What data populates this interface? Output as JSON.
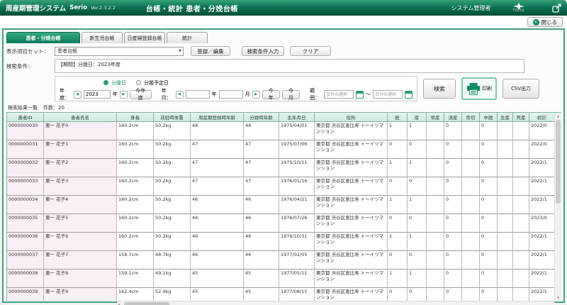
{
  "titlebar": {
    "app_name": "周産期管理システム",
    "brand": "Serio",
    "version": "Ver.2.3.2.2",
    "screen_title": "台帳・統計 患者・分娩台帳",
    "user_role": "システム管理者",
    "logo_text": "TOITU"
  },
  "window": {
    "close_label": "閉じる"
  },
  "tabs": [
    {
      "label": "患者・分娩台帳",
      "active": true
    },
    {
      "label": "新生児台帳",
      "active": false
    },
    {
      "label": "日産婦登録台帳",
      "active": false
    },
    {
      "label": "統計",
      "active": false
    }
  ],
  "toolbar": {
    "display_set_label": "表示項目セット：",
    "display_set_value": "患者台帳",
    "register_edit_button": "登録／編集",
    "search_condition_button": "検索条件入力",
    "clear_button": "クリア"
  },
  "condition": {
    "label": "検索条件：",
    "value": "【期間】分娩日：2023年度"
  },
  "search_panel": {
    "radio_delivery_date": "分娩日",
    "radio_due_date": "分娩予定日",
    "fiscal_year_label": "年度：",
    "fiscal_year_value": "2023",
    "year_unit": "年",
    "this_fiscal_year_button": "今年度",
    "year_month_label": "年月：",
    "year_value": "",
    "month_value": "",
    "month_unit": "月",
    "this_year_button": "今年",
    "this_month_button": "今月",
    "range_label": "範囲：",
    "date_placeholder": "日付の選択",
    "range_tilde": "～",
    "search_button": "検索",
    "print_button": "印刷",
    "csv_button": "CSV出力"
  },
  "results": {
    "title": "検索結果一覧",
    "count_label": "件数：20"
  },
  "table": {
    "columns": [
      "患者ID",
      "患者氏名",
      "身長",
      "非妊時体重",
      "周産期登録時年齢",
      "分娩時年齢",
      "生年月日",
      "住所",
      "妊",
      "産",
      "早産",
      "流産",
      "帝切",
      "中絶",
      "生産",
      "死産",
      "初診"
    ],
    "rows": [
      [
        "0000000030",
        "東一 花子0",
        "160.2cm",
        "50.2kg",
        "48",
        "48",
        "1975/04/01",
        "東京都 渋谷区恵比寿 トーイツマンション",
        "1",
        "1",
        "",
        "0",
        "",
        "0",
        "",
        "",
        "2022/0"
      ],
      [
        "0000000031",
        "東一 花子1",
        "160.2cm",
        "50.2kg",
        "47",
        "47",
        "1975/07/06",
        "東京都 渋谷区恵比寿 トーイツマンション",
        "0",
        "0",
        "",
        "0",
        "",
        "0",
        "",
        "",
        "2022/0"
      ],
      [
        "0000000032",
        "東一 花子2",
        "160.2cm",
        "50.2kg",
        "47",
        "47",
        "1975/10/11",
        "東京都 渋谷区恵比寿 トーイツマンション",
        "1",
        "1",
        "",
        "0",
        "",
        "0",
        "",
        "",
        "2022/1"
      ],
      [
        "0000000033",
        "東一 花子3",
        "160.2cm",
        "50.2kg",
        "47",
        "47",
        "1976/01/16",
        "東京都 渋谷区恵比寿 トーイツマンション",
        "0",
        "0",
        "",
        "0",
        "",
        "0",
        "",
        "",
        "2022/1"
      ],
      [
        "0000000034",
        "東一 花子4",
        "160.2cm",
        "50.2kg",
        "46",
        "46",
        "1976/04/21",
        "東京都 渋谷区恵比寿 トーイツマンション",
        "1",
        "1",
        "",
        "0",
        "",
        "0",
        "",
        "",
        "2022/1"
      ],
      [
        "0000000035",
        "東一 花子5",
        "160.2cm",
        "50.2kg",
        "46",
        "46",
        "1976/07/26",
        "東京都 渋谷区恵比寿 トーイツマンション",
        "0",
        "0",
        "",
        "0",
        "",
        "0",
        "",
        "",
        "2023/0"
      ],
      [
        "0000000036",
        "東一 花子6",
        "160.2cm",
        "50.2kg",
        "46",
        "46",
        "1976/10/31",
        "東京都 渋谷区恵比寿 トーイツマンション",
        "1",
        "1",
        "",
        "0",
        "",
        "0",
        "",
        "",
        "2022/1"
      ],
      [
        "0000000037",
        "東一 花子7",
        "158.7cm",
        "48.7kg",
        "46",
        "46",
        "1977/02/05",
        "東京都 渋谷区恵比寿 トーイツマンション",
        "0",
        "0",
        "",
        "0",
        "",
        "0",
        "",
        "",
        "2022/1"
      ],
      [
        "0000000038",
        "東一 花子8",
        "159.1cm",
        "49.1kg",
        "45",
        "45",
        "1977/05/11",
        "東京都 渋谷区恵比寿 トーイツマンション",
        "1",
        "1",
        "",
        "0",
        "",
        "0",
        "",
        "",
        "2022/1"
      ],
      [
        "0000000039",
        "東一 花子9",
        "162.4cm",
        "52.4kg",
        "45",
        "45",
        "1977/08/15",
        "東京都 渋谷区恵比寿 トーイツマンション",
        "0",
        "0",
        "",
        "0",
        "",
        "0",
        "",
        "",
        "2022/1"
      ]
    ]
  }
}
